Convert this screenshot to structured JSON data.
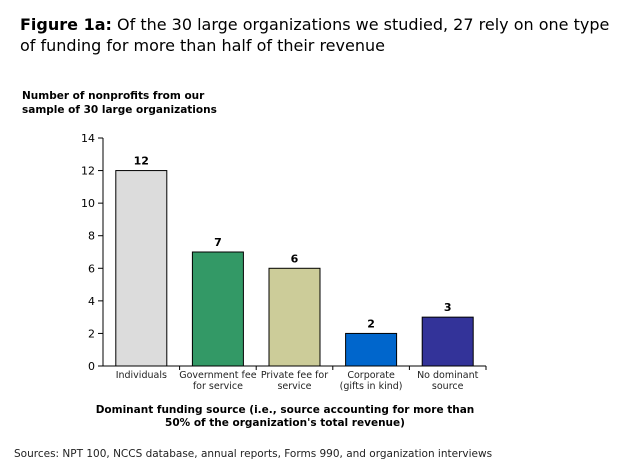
{
  "chart_data": {
    "type": "bar",
    "title_bold": "Figure 1a:",
    "title": "Of the 30 large organizations we studied, 27 rely on one type of funding for more than half of their revenue",
    "ylabel": "Number of nonprofits from our sample of 30 large organizations",
    "xlabel": "Dominant funding source (i.e., source accounting for more than 50% of the organization's total revenue)",
    "ylim": [
      0,
      14
    ],
    "yticks": [
      0,
      2,
      4,
      6,
      8,
      10,
      12,
      14
    ],
    "grid": false,
    "categories": [
      [
        "Individuals"
      ],
      [
        "Government fee",
        "for service"
      ],
      [
        "Private fee for",
        "service"
      ],
      [
        "Corporate",
        "(gifts in kind)"
      ],
      [
        "No dominant",
        "source"
      ]
    ],
    "values": [
      12,
      7,
      6,
      2,
      3
    ],
    "colors": [
      "#dcdcdc",
      "#339966",
      "#cccc99",
      "#0066cc",
      "#333399"
    ]
  },
  "source": "Sources: NPT 100, NCCS database, annual reports, Forms 990, and organization interviews"
}
